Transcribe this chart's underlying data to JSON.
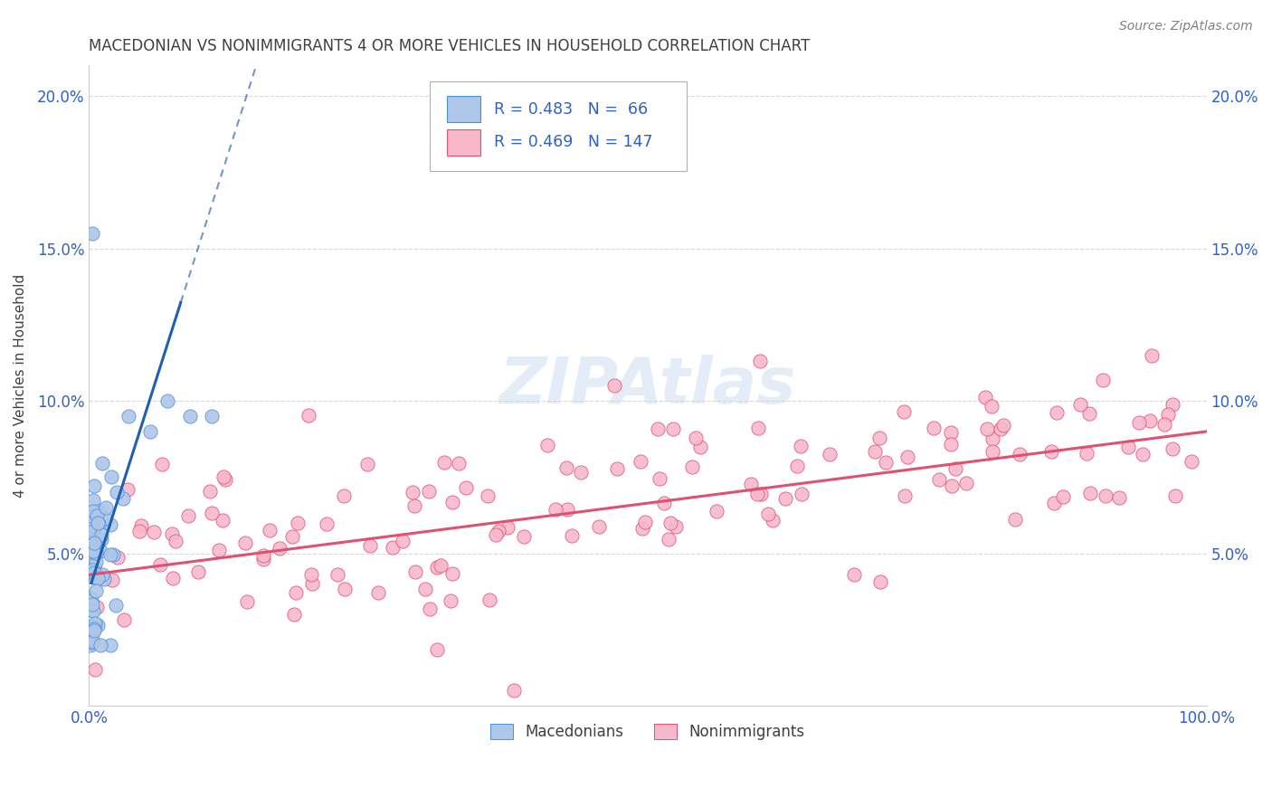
{
  "title": "MACEDONIAN VS NONIMMIGRANTS 4 OR MORE VEHICLES IN HOUSEHOLD CORRELATION CHART",
  "source": "Source: ZipAtlas.com",
  "ylabel": "4 or more Vehicles in Household",
  "macedonian_R": 0.483,
  "macedonian_N": 66,
  "nonimmigrant_R": 0.469,
  "nonimmigrant_N": 147,
  "macedonian_fill": "#aec6e8",
  "macedonian_edge": "#4a90d9",
  "nonimmigrant_fill": "#f7b8cc",
  "nonimmigrant_edge": "#e05070",
  "mac_line_color": "#2060b0",
  "nonimm_line_color": "#e05070",
  "legend_text_color": "#3060c0",
  "title_color": "#404040",
  "source_color": "#808080",
  "bg_color": "#ffffff",
  "grid_color": "#d8d8d8",
  "xlim": [
    0.0,
    1.0
  ],
  "ylim": [
    0.0,
    0.21
  ],
  "x_tick_vals": [
    0.0,
    1.0
  ],
  "x_tick_labels": [
    "0.0%",
    "100.0%"
  ],
  "y_tick_vals": [
    0.05,
    0.1,
    0.15,
    0.2
  ],
  "y_tick_labels": [
    "5.0%",
    "10.0%",
    "15.0%",
    "20.0%"
  ],
  "nonimm_trend_intercept": 0.043,
  "nonimm_trend_slope": 0.047,
  "mac_trend_intercept": 0.038,
  "mac_trend_slope": 1.15
}
